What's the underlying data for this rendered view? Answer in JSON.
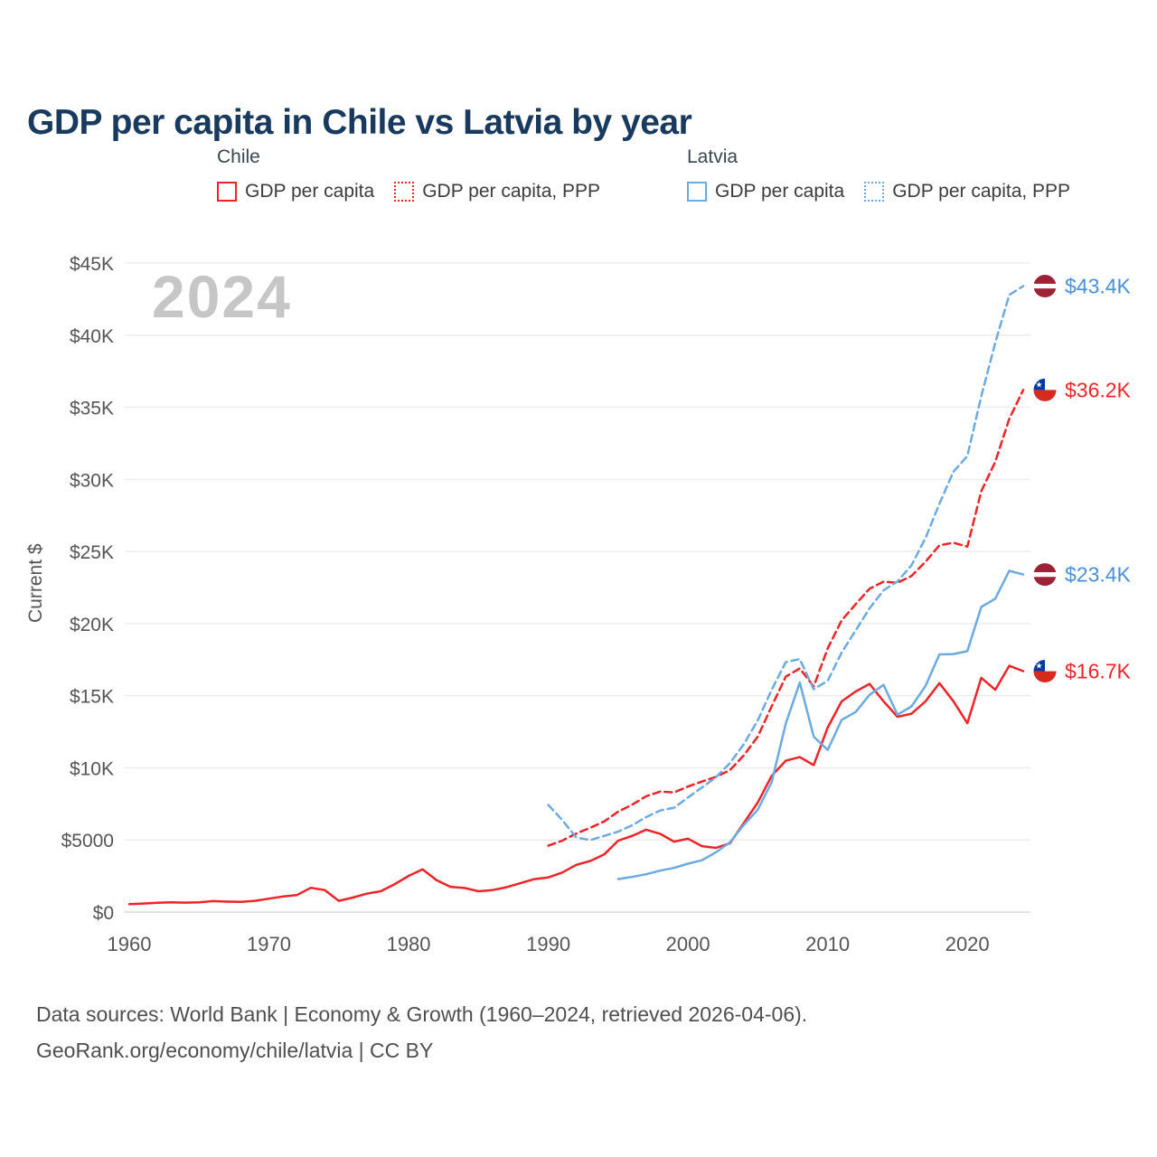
{
  "page": {
    "title": "GDP per capita in Chile vs Latvia by year",
    "watermark": "2024",
    "y_axis_label": "Current $",
    "footer_line1": "Data sources: World Bank | Economy & Growth (1960–2024, retrieved 2026-04-06).",
    "footer_line2": "GeoRank.org/economy/chile/latvia | CC BY"
  },
  "colors": {
    "chile_red": "#ee2428",
    "latvia_blue": "#6babe2",
    "end_label_red": "#ee2428",
    "end_label_blue": "#4a90d9",
    "title_navy": "#173a5e",
    "grid": "#ededed",
    "axis_text": "#555555"
  },
  "legend": {
    "groups": [
      {
        "name": "Chile",
        "color": "#ee2428",
        "items": [
          {
            "label": "GDP per capita",
            "style": "solid"
          },
          {
            "label": "GDP per capita, PPP",
            "style": "dotted"
          }
        ]
      },
      {
        "name": "Latvia",
        "color": "#6babe2",
        "items": [
          {
            "label": "GDP per capita",
            "style": "solid"
          },
          {
            "label": "GDP per capita, PPP",
            "style": "dotted"
          }
        ]
      }
    ]
  },
  "chart_data": {
    "type": "line",
    "title": "GDP per capita in Chile vs Latvia by year",
    "xlabel": "",
    "ylabel": "Current $",
    "xlim": [
      1960,
      2024
    ],
    "ylim": [
      0,
      45000
    ],
    "grid": true,
    "legend_position": "top",
    "x_ticks": [
      1960,
      1970,
      1980,
      1990,
      2000,
      2010,
      2020
    ],
    "y_ticks": [
      {
        "value": 0,
        "label": "$0"
      },
      {
        "value": 5000,
        "label": "$5000"
      },
      {
        "value": 10000,
        "label": "$10K"
      },
      {
        "value": 15000,
        "label": "$15K"
      },
      {
        "value": 20000,
        "label": "$20K"
      },
      {
        "value": 25000,
        "label": "$25K"
      },
      {
        "value": 30000,
        "label": "$30K"
      },
      {
        "value": 35000,
        "label": "$35K"
      },
      {
        "value": 40000,
        "label": "$40K"
      },
      {
        "value": 45000,
        "label": "$45K"
      }
    ],
    "series": [
      {
        "id": "chile-gdp",
        "name": "Chile GDP per capita",
        "color": "#ee2428",
        "dash": "solid",
        "x": [
          1960,
          1961,
          1962,
          1963,
          1964,
          1965,
          1966,
          1967,
          1968,
          1969,
          1970,
          1971,
          1972,
          1973,
          1974,
          1975,
          1976,
          1977,
          1978,
          1979,
          1980,
          1981,
          1982,
          1983,
          1984,
          1985,
          1986,
          1987,
          1988,
          1989,
          1990,
          1991,
          1992,
          1993,
          1994,
          1995,
          1996,
          1997,
          1998,
          1999,
          2000,
          2001,
          2002,
          2003,
          2004,
          2005,
          2006,
          2007,
          2008,
          2009,
          2010,
          2011,
          2012,
          2013,
          2014,
          2015,
          2016,
          2017,
          2018,
          2019,
          2020,
          2021,
          2022,
          2023,
          2024
        ],
        "values": [
          550,
          590,
          640,
          680,
          650,
          680,
          760,
          720,
          700,
          780,
          930,
          1080,
          1180,
          1680,
          1520,
          780,
          1000,
          1270,
          1440,
          1930,
          2510,
          2960,
          2210,
          1750,
          1670,
          1440,
          1520,
          1720,
          2000,
          2280,
          2400,
          2740,
          3270,
          3540,
          3990,
          4950,
          5280,
          5710,
          5430,
          4880,
          5080,
          4570,
          4450,
          4770,
          6170,
          7600,
          9450,
          10490,
          10740,
          10190,
          12790,
          14600,
          15290,
          15820,
          14610,
          13540,
          13750,
          14600,
          15870,
          14620,
          13090,
          16240,
          15410,
          17070,
          16700
        ]
      },
      {
        "id": "chile-gdp-ppp",
        "name": "Chile GDP per capita, PPP",
        "color": "#ee2428",
        "dash": "dashed",
        "x": [
          1990,
          1991,
          1992,
          1993,
          1994,
          1995,
          1996,
          1997,
          1998,
          1999,
          2000,
          2001,
          2002,
          2003,
          2004,
          2005,
          2006,
          2007,
          2008,
          2009,
          2010,
          2011,
          2012,
          2013,
          2014,
          2015,
          2016,
          2017,
          2018,
          2019,
          2020,
          2021,
          2022,
          2023,
          2024
        ],
        "values": [
          4600,
          4950,
          5440,
          5840,
          6280,
          6960,
          7440,
          8030,
          8350,
          8300,
          8700,
          9050,
          9370,
          9840,
          10860,
          12170,
          14280,
          16320,
          16890,
          15640,
          18280,
          20220,
          21340,
          22420,
          22910,
          22830,
          23300,
          24280,
          25430,
          25610,
          25340,
          29180,
          31220,
          34190,
          36200
        ]
      },
      {
        "id": "latvia-gdp",
        "name": "Latvia GDP per capita",
        "color": "#6babe2",
        "dash": "solid",
        "x": [
          1995,
          1996,
          1997,
          1998,
          1999,
          2000,
          2001,
          2002,
          2003,
          2004,
          2005,
          2006,
          2007,
          2008,
          2009,
          2010,
          2011,
          2012,
          2013,
          2014,
          2015,
          2016,
          2017,
          2018,
          2019,
          2020,
          2021,
          2022,
          2023,
          2024
        ],
        "values": [
          2290,
          2440,
          2620,
          2870,
          3060,
          3350,
          3590,
          4140,
          4830,
          6040,
          7110,
          9020,
          13070,
          15910,
          12160,
          11240,
          13320,
          13870,
          15060,
          15750,
          13680,
          14260,
          15660,
          17860,
          17890,
          18090,
          21150,
          21730,
          23660,
          23400
        ]
      },
      {
        "id": "latvia-gdp-ppp",
        "name": "Latvia GDP per capita, PPP",
        "color": "#6babe2",
        "dash": "dashed",
        "x": [
          1990,
          1991,
          1992,
          1993,
          1994,
          1995,
          1996,
          1997,
          1998,
          1999,
          2000,
          2001,
          2002,
          2003,
          2004,
          2005,
          2006,
          2007,
          2008,
          2009,
          2010,
          2011,
          2012,
          2013,
          2014,
          2015,
          2016,
          2017,
          2018,
          2019,
          2020,
          2021,
          2022,
          2023,
          2024
        ],
        "values": [
          7430,
          6380,
          5170,
          4990,
          5280,
          5580,
          6010,
          6580,
          7040,
          7230,
          7940,
          8640,
          9340,
          10320,
          11640,
          13300,
          15420,
          17330,
          17540,
          15450,
          16040,
          17990,
          19520,
          21060,
          22310,
          22920,
          24050,
          25920,
          28310,
          30520,
          31620,
          35760,
          39480,
          42780,
          43400
        ]
      }
    ],
    "end_labels": [
      {
        "text": "$43.4K",
        "flag": "latvia",
        "color": "#4a90d9",
        "value": 43400
      },
      {
        "text": "$36.2K",
        "flag": "chile",
        "color": "#ee2428",
        "value": 36200
      },
      {
        "text": "$23.4K",
        "flag": "latvia",
        "color": "#4a90d9",
        "value": 23400
      },
      {
        "text": "$16.7K",
        "flag": "chile",
        "color": "#ee2428",
        "value": 16700
      }
    ]
  }
}
